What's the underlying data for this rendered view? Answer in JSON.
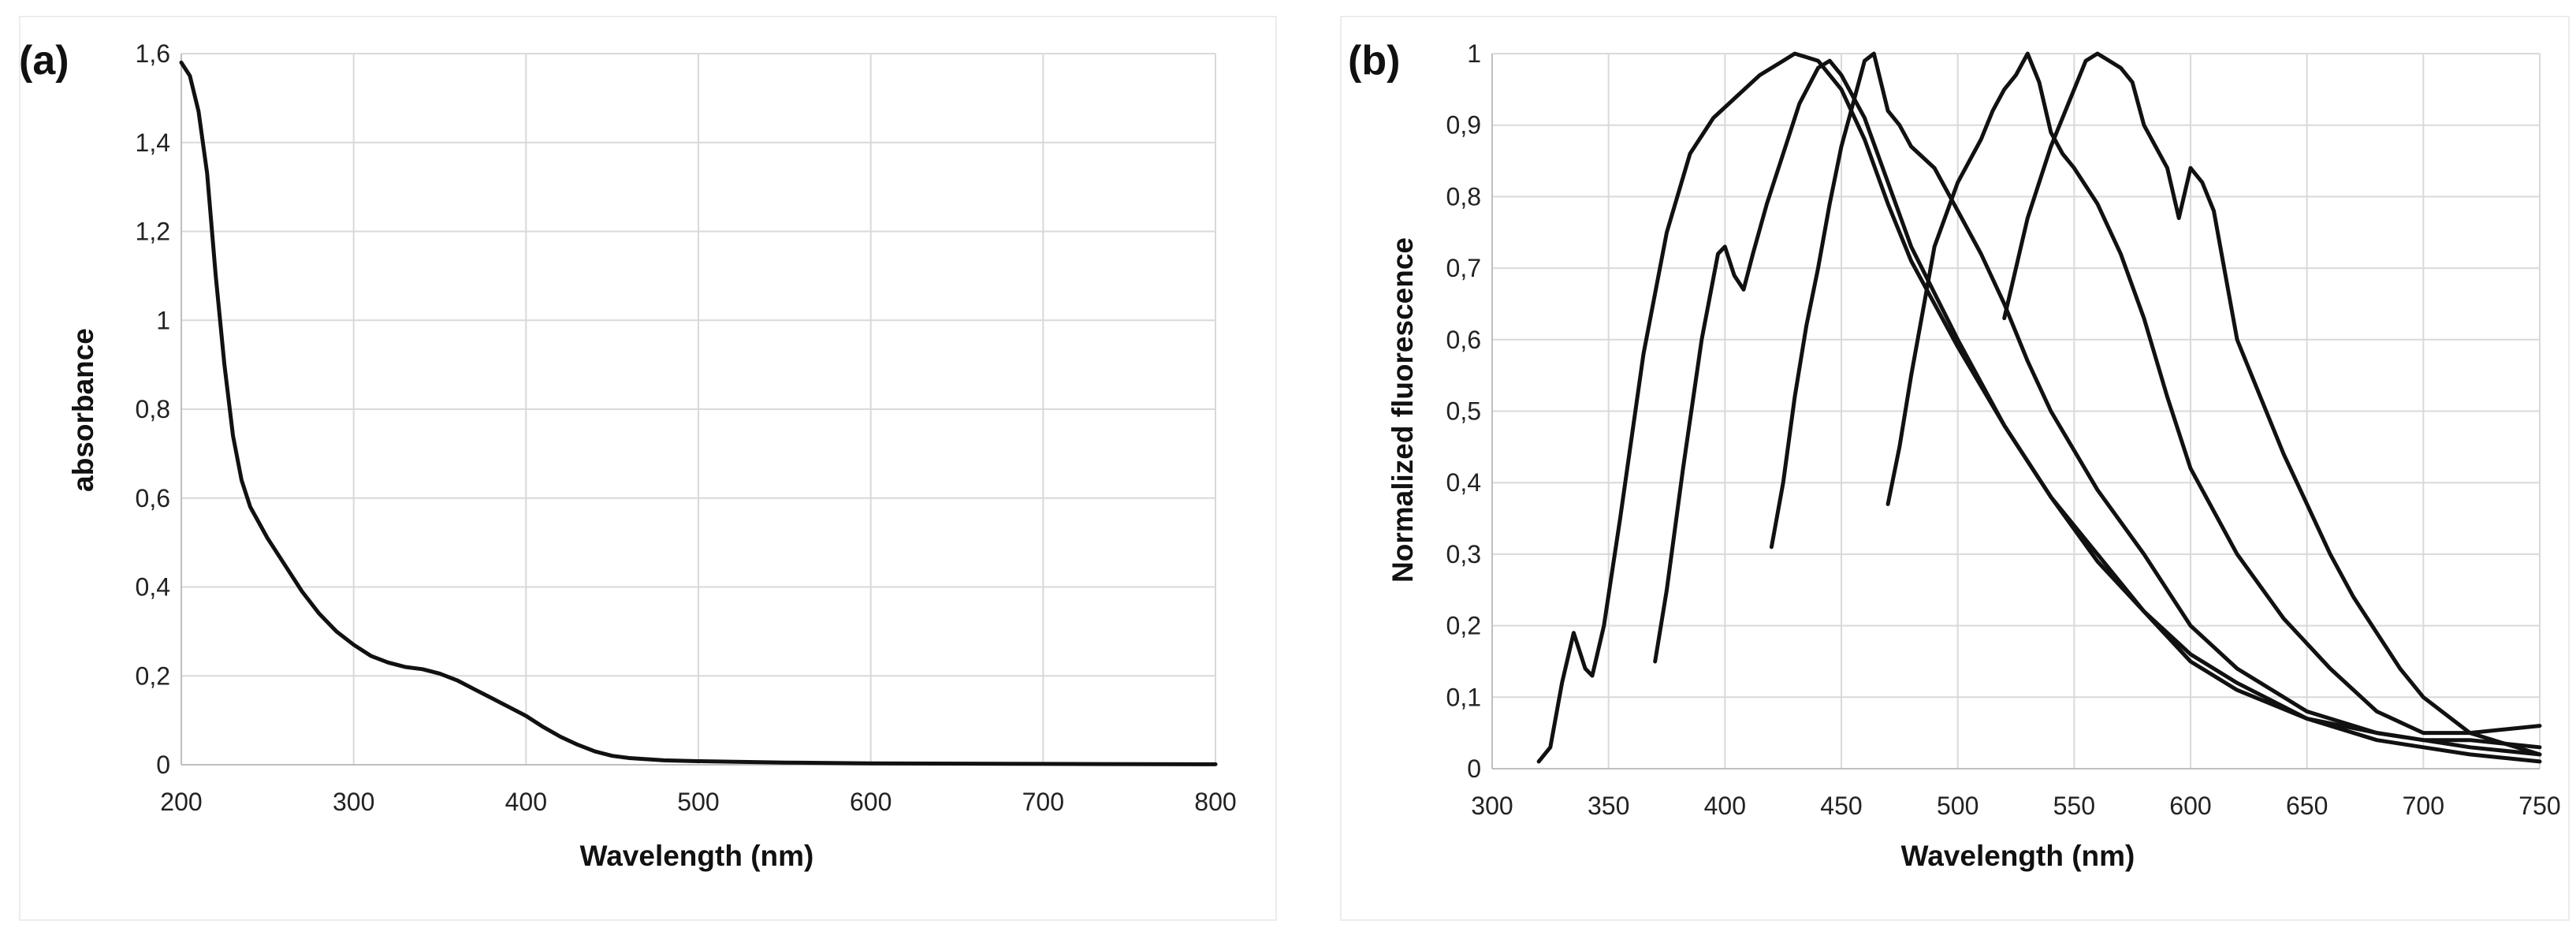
{
  "chart_data": [
    {
      "type": "line",
      "panel_label": "(a)",
      "xlabel": "Wavelength (nm)",
      "ylabel": "absorbance",
      "xlim": [
        200,
        800
      ],
      "ylim": [
        0,
        1.6
      ],
      "x_ticks": [
        200,
        300,
        400,
        500,
        600,
        700,
        800
      ],
      "y_ticks": [
        0,
        0.2,
        0.4,
        0.6,
        0.8,
        1,
        1.2,
        1.4,
        1.6
      ],
      "y_tick_labels": [
        "0",
        "0,2",
        "0,4",
        "0,6",
        "0,8",
        "1",
        "1,2",
        "1,4",
        "1,6"
      ],
      "grid": true,
      "series": [
        {
          "x": [
            200,
            205,
            210,
            215,
            220,
            225,
            230,
            235,
            240,
            250,
            260,
            270,
            280,
            290,
            300,
            310,
            320,
            330,
            340,
            350,
            360,
            370,
            380,
            390,
            400,
            410,
            420,
            430,
            440,
            450,
            460,
            480,
            500,
            550,
            600,
            700,
            800
          ],
          "y": [
            1.58,
            1.55,
            1.47,
            1.33,
            1.1,
            0.9,
            0.74,
            0.64,
            0.58,
            0.51,
            0.45,
            0.39,
            0.34,
            0.3,
            0.27,
            0.245,
            0.23,
            0.22,
            0.215,
            0.205,
            0.19,
            0.17,
            0.15,
            0.13,
            0.11,
            0.085,
            0.063,
            0.045,
            0.03,
            0.02,
            0.015,
            0.01,
            0.008,
            0.005,
            0.003,
            0.002,
            0.001
          ]
        }
      ]
    },
    {
      "type": "line",
      "panel_label": "(b)",
      "xlabel": "Wavelength (nm)",
      "ylabel": "Normalized fluorescence",
      "xlim": [
        300,
        750
      ],
      "ylim": [
        0,
        1
      ],
      "x_ticks": [
        300,
        350,
        400,
        450,
        500,
        550,
        600,
        650,
        700,
        750
      ],
      "y_ticks": [
        0,
        0.1,
        0.2,
        0.3,
        0.4,
        0.5,
        0.6,
        0.7,
        0.8,
        0.9,
        1
      ],
      "y_tick_labels": [
        "0",
        "0,1",
        "0,2",
        "0,3",
        "0,4",
        "0,5",
        "0,6",
        "0,7",
        "0,8",
        "0,9",
        "1"
      ],
      "grid": true,
      "series": [
        {
          "x": [
            320,
            325,
            330,
            335,
            340,
            343,
            348,
            355,
            365,
            375,
            385,
            395,
            405,
            415,
            425,
            430,
            440,
            450,
            460,
            470,
            480,
            500,
            520,
            540,
            560,
            580,
            600,
            620,
            650,
            680,
            700,
            720,
            750
          ],
          "y": [
            0.01,
            0.03,
            0.12,
            0.19,
            0.14,
            0.13,
            0.2,
            0.35,
            0.58,
            0.75,
            0.86,
            0.91,
            0.94,
            0.97,
            0.99,
            1.0,
            0.99,
            0.95,
            0.88,
            0.79,
            0.71,
            0.59,
            0.48,
            0.38,
            0.3,
            0.22,
            0.16,
            0.12,
            0.07,
            0.04,
            0.03,
            0.02,
            0.01
          ]
        },
        {
          "x": [
            370,
            375,
            382,
            390,
            397,
            400,
            404,
            408,
            412,
            418,
            425,
            432,
            440,
            445,
            450,
            460,
            470,
            480,
            500,
            520,
            540,
            560,
            580,
            600,
            620,
            650,
            680,
            700,
            720,
            750
          ],
          "y": [
            0.15,
            0.25,
            0.42,
            0.6,
            0.72,
            0.73,
            0.69,
            0.67,
            0.72,
            0.79,
            0.86,
            0.93,
            0.98,
            0.99,
            0.97,
            0.91,
            0.82,
            0.73,
            0.6,
            0.48,
            0.38,
            0.29,
            0.22,
            0.15,
            0.11,
            0.07,
            0.05,
            0.04,
            0.03,
            0.02
          ]
        },
        {
          "x": [
            420,
            425,
            430,
            435,
            440,
            445,
            450,
            455,
            460,
            464,
            467,
            470,
            475,
            480,
            490,
            500,
            510,
            520,
            530,
            540,
            560,
            580,
            600,
            620,
            650,
            680,
            700,
            720,
            750
          ],
          "y": [
            0.31,
            0.4,
            0.52,
            0.62,
            0.7,
            0.79,
            0.87,
            0.93,
            0.99,
            1.0,
            0.96,
            0.92,
            0.9,
            0.87,
            0.84,
            0.78,
            0.72,
            0.65,
            0.57,
            0.5,
            0.39,
            0.3,
            0.2,
            0.14,
            0.08,
            0.05,
            0.04,
            0.04,
            0.03
          ]
        },
        {
          "x": [
            470,
            475,
            480,
            485,
            490,
            500,
            510,
            515,
            520,
            525,
            530,
            535,
            540,
            545,
            550,
            560,
            570,
            580,
            590,
            600,
            620,
            640,
            660,
            680,
            700,
            720,
            750
          ],
          "y": [
            0.37,
            0.45,
            0.55,
            0.64,
            0.73,
            0.82,
            0.88,
            0.92,
            0.95,
            0.97,
            1.0,
            0.96,
            0.89,
            0.86,
            0.84,
            0.79,
            0.72,
            0.63,
            0.52,
            0.42,
            0.3,
            0.21,
            0.14,
            0.08,
            0.05,
            0.05,
            0.06
          ]
        },
        {
          "x": [
            520,
            525,
            530,
            535,
            540,
            545,
            550,
            555,
            560,
            570,
            575,
            580,
            590,
            595,
            600,
            605,
            610,
            620,
            630,
            640,
            650,
            660,
            670,
            680,
            690,
            700,
            720,
            750
          ],
          "y": [
            0.63,
            0.7,
            0.77,
            0.82,
            0.87,
            0.91,
            0.95,
            0.99,
            1.0,
            0.98,
            0.96,
            0.9,
            0.84,
            0.77,
            0.84,
            0.82,
            0.78,
            0.6,
            0.52,
            0.44,
            0.37,
            0.3,
            0.24,
            0.19,
            0.14,
            0.1,
            0.05,
            0.02
          ]
        }
      ]
    }
  ]
}
